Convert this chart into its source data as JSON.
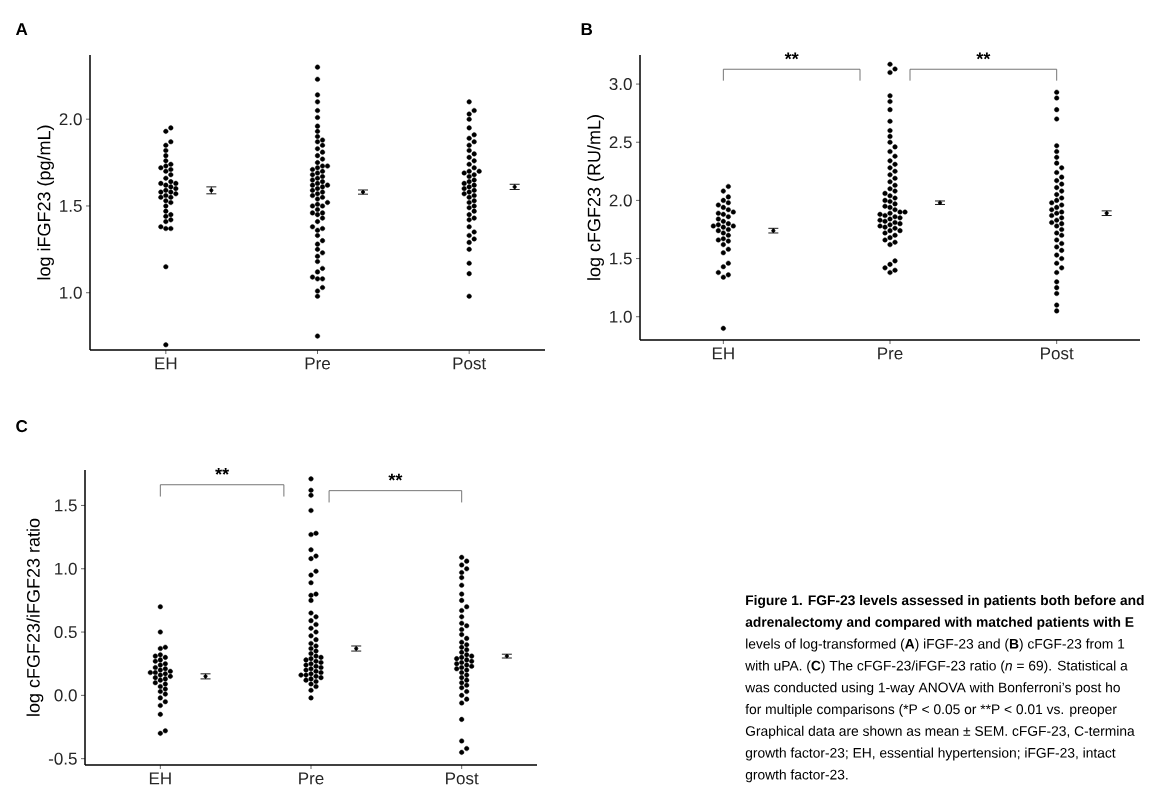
{
  "chart_data": [
    {
      "type": "scatter",
      "title": "A",
      "ylabel": "log iFGF23 (pg/mL)",
      "categories": [
        "EH",
        "Pre",
        "Post"
      ],
      "ylim": [
        0.67,
        2.37
      ],
      "yticks": [
        {
          "value": 1.0,
          "label": "1.0"
        },
        1.5,
        {
          "value": 2.0,
          "label": "2.0"
        }
      ],
      "series": [
        {
          "color": "#000000",
          "marker": "circle",
          "x": [
            "EH",
            "EH",
            "EH",
            "EH",
            "EH",
            "EH",
            "EH",
            "EH",
            "EH",
            "EH",
            "EH",
            "EH",
            "EH",
            "EH",
            "EH",
            "EH",
            "EH",
            "EH",
            "EH",
            "EH",
            "EH",
            "EH",
            "EH",
            "EH",
            "EH",
            "EH",
            "EH",
            "EH",
            "EH",
            "EH",
            "EH",
            "EH",
            "EH",
            "EH",
            "EH",
            "EH",
            "EH",
            "EH",
            "EH",
            "EH",
            "Pre",
            "Pre",
            "Pre",
            "Pre",
            "Pre",
            "Pre",
            "Pre",
            "Pre",
            "Pre",
            "Pre",
            "Pre",
            "Pre",
            "Pre",
            "Pre",
            "Pre",
            "Pre",
            "Pre",
            "Pre",
            "Pre",
            "Pre",
            "Pre",
            "Pre",
            "Pre",
            "Pre",
            "Pre",
            "Pre",
            "Pre",
            "Pre",
            "Pre",
            "Pre",
            "Pre",
            "Pre",
            "Pre",
            "Pre",
            "Pre",
            "Pre",
            "Pre",
            "Pre",
            "Pre",
            "Pre",
            "Pre",
            "Pre",
            "Pre",
            "Pre",
            "Pre",
            "Pre",
            "Pre",
            "Pre",
            "Pre",
            "Pre",
            "Pre",
            "Pre",
            "Pre",
            "Pre",
            "Pre",
            "Pre",
            "Pre",
            "Pre",
            "Pre",
            "Pre",
            "Pre",
            "Pre",
            "Pre",
            "Pre",
            "Pre",
            "Pre",
            "Pre",
            "Pre",
            "Post",
            "Post",
            "Post",
            "Post",
            "Post",
            "Post",
            "Post",
            "Post",
            "Post",
            "Post",
            "Post",
            "Post",
            "Post",
            "Post",
            "Post",
            "Post",
            "Post",
            "Post",
            "Post",
            "Post",
            "Post",
            "Post",
            "Post",
            "Post",
            "Post",
            "Post",
            "Post",
            "Post",
            "Post",
            "Post",
            "Post",
            "Post",
            "Post",
            "Post",
            "Post",
            "Post",
            "Post",
            "Post",
            "Post",
            "Post",
            "Post",
            "Post",
            "Post",
            "Post",
            "Post",
            "Post",
            "Post",
            "Post"
          ],
          "values": [
            0.7,
            1.15,
            1.37,
            1.37,
            1.38,
            1.41,
            1.42,
            1.44,
            1.45,
            1.47,
            1.5,
            1.52,
            1.53,
            1.55,
            1.55,
            1.56,
            1.57,
            1.58,
            1.58,
            1.59,
            1.6,
            1.61,
            1.62,
            1.63,
            1.63,
            1.64,
            1.66,
            1.68,
            1.7,
            1.71,
            1.72,
            1.73,
            1.74,
            1.76,
            1.79,
            1.82,
            1.85,
            1.87,
            1.93,
            1.95,
            0.75,
            0.98,
            1.01,
            1.03,
            1.08,
            1.08,
            1.09,
            1.12,
            1.14,
            1.18,
            1.21,
            1.23,
            1.25,
            1.28,
            1.3,
            1.33,
            1.36,
            1.37,
            1.38,
            1.41,
            1.43,
            1.45,
            1.46,
            1.46,
            1.48,
            1.5,
            1.5,
            1.51,
            1.52,
            1.54,
            1.55,
            1.56,
            1.57,
            1.58,
            1.59,
            1.6,
            1.61,
            1.62,
            1.62,
            1.63,
            1.64,
            1.65,
            1.66,
            1.67,
            1.68,
            1.69,
            1.7,
            1.71,
            1.72,
            1.73,
            1.73,
            1.75,
            1.77,
            1.79,
            1.81,
            1.83,
            1.85,
            1.87,
            1.88,
            1.9,
            1.93,
            1.96,
            2.01,
            2.05,
            2.1,
            2.14,
            2.23,
            2.3,
            0.98,
            1.11,
            1.17,
            1.25,
            1.29,
            1.31,
            1.33,
            1.35,
            1.38,
            1.42,
            1.43,
            1.45,
            1.47,
            1.49,
            1.5,
            1.52,
            1.53,
            1.55,
            1.56,
            1.57,
            1.58,
            1.59,
            1.6,
            1.61,
            1.62,
            1.63,
            1.64,
            1.65,
            1.67,
            1.68,
            1.69,
            1.7,
            1.7,
            1.72,
            1.74,
            1.76,
            1.78,
            1.8,
            1.82,
            1.85,
            1.87,
            1.89,
            1.91,
            1.95,
            2.0,
            2.03,
            2.05,
            2.1
          ]
        },
        {
          "color": "#000000",
          "marker": "circle",
          "x": [
            "EH",
            "Pre",
            "Post"
          ],
          "values": [
            1.59,
            1.58,
            1.61
          ],
          "errors": [
            0.02,
            0.012,
            0.015
          ]
        }
      ]
    },
    {
      "type": "scatter",
      "title": "B",
      "ylabel": "log cFGF23 (RU/mL)",
      "categories": [
        "EH",
        "Pre",
        "Post"
      ],
      "ylim": [
        0.8,
        3.25
      ],
      "yticks": [
        {
          "value": 1.0,
          "label": "1.0"
        },
        1.5,
        {
          "value": 2.0,
          "label": "2.0"
        },
        2.5,
        {
          "value": 3.0,
          "label": "3.0"
        }
      ],
      "annotations": [
        "**",
        "**"
      ],
      "series": [
        {
          "color": "#000000",
          "marker": "circle",
          "x": [
            "EH",
            "EH",
            "EH",
            "EH",
            "EH",
            "EH",
            "EH",
            "EH",
            "EH",
            "EH",
            "EH",
            "EH",
            "EH",
            "EH",
            "EH",
            "EH",
            "EH",
            "EH",
            "EH",
            "EH",
            "EH",
            "EH",
            "EH",
            "EH",
            "EH",
            "EH",
            "EH",
            "EH",
            "EH",
            "EH",
            "EH",
            "EH",
            "EH",
            "EH",
            "EH",
            "Pre",
            "Pre",
            "Pre",
            "Pre",
            "Pre",
            "Pre",
            "Pre",
            "Pre",
            "Pre",
            "Pre",
            "Pre",
            "Pre",
            "Pre",
            "Pre",
            "Pre",
            "Pre",
            "Pre",
            "Pre",
            "Pre",
            "Pre",
            "Pre",
            "Pre",
            "Pre",
            "Pre",
            "Pre",
            "Pre",
            "Pre",
            "Pre",
            "Pre",
            "Pre",
            "Pre",
            "Pre",
            "Pre",
            "Pre",
            "Pre",
            "Pre",
            "Pre",
            "Pre",
            "Pre",
            "Pre",
            "Pre",
            "Pre",
            "Pre",
            "Pre",
            "Pre",
            "Pre",
            "Pre",
            "Pre",
            "Pre",
            "Pre",
            "Pre",
            "Pre",
            "Pre",
            "Pre",
            "Pre",
            "Pre",
            "Pre",
            "Pre",
            "Pre",
            "Pre",
            "Pre",
            "Post",
            "Post",
            "Post",
            "Post",
            "Post",
            "Post",
            "Post",
            "Post",
            "Post",
            "Post",
            "Post",
            "Post",
            "Post",
            "Post",
            "Post",
            "Post",
            "Post",
            "Post",
            "Post",
            "Post",
            "Post",
            "Post",
            "Post",
            "Post",
            "Post",
            "Post",
            "Post",
            "Post",
            "Post",
            "Post",
            "Post",
            "Post",
            "Post",
            "Post",
            "Post",
            "Post",
            "Post",
            "Post",
            "Post",
            "Post",
            "Post",
            "Post",
            "Post",
            "Post",
            "Post",
            "Post",
            "Post"
          ],
          "values": [
            0.9,
            1.34,
            1.36,
            1.38,
            1.43,
            1.46,
            1.55,
            1.58,
            1.62,
            1.65,
            1.66,
            1.67,
            1.7,
            1.72,
            1.74,
            1.75,
            1.77,
            1.78,
            1.78,
            1.79,
            1.8,
            1.82,
            1.84,
            1.86,
            1.88,
            1.89,
            1.9,
            1.92,
            1.94,
            1.96,
            1.98,
            2.0,
            2.03,
            2.08,
            2.12,
            1.38,
            1.4,
            1.42,
            1.45,
            1.48,
            1.62,
            1.64,
            1.66,
            1.68,
            1.7,
            1.72,
            1.74,
            1.74,
            1.76,
            1.77,
            1.78,
            1.79,
            1.8,
            1.81,
            1.82,
            1.83,
            1.84,
            1.85,
            1.86,
            1.87,
            1.88,
            1.89,
            1.9,
            1.9,
            1.92,
            1.94,
            1.95,
            1.97,
            1.99,
            2.0,
            2.02,
            2.04,
            2.06,
            2.08,
            2.1,
            2.13,
            2.16,
            2.19,
            2.22,
            2.25,
            2.28,
            2.31,
            2.34,
            2.38,
            2.42,
            2.46,
            2.5,
            2.55,
            2.6,
            2.68,
            2.78,
            2.85,
            2.9,
            3.1,
            3.13,
            3.17,
            1.05,
            1.1,
            1.2,
            1.25,
            1.3,
            1.38,
            1.42,
            1.46,
            1.5,
            1.53,
            1.57,
            1.6,
            1.63,
            1.66,
            1.7,
            1.72,
            1.75,
            1.78,
            1.8,
            1.81,
            1.83,
            1.85,
            1.87,
            1.89,
            1.9,
            1.92,
            1.94,
            1.96,
            1.98,
            2.0,
            2.02,
            2.05,
            2.08,
            2.11,
            2.14,
            2.17,
            2.2,
            2.24,
            2.28,
            2.32,
            2.37,
            2.42,
            2.47,
            2.7,
            2.78,
            2.88,
            2.93
          ]
        },
        {
          "color": "#000000",
          "marker": "circle",
          "x": [
            "EH",
            "Pre",
            "Post"
          ],
          "values": [
            1.74,
            1.98,
            1.89
          ],
          "errors": [
            0.02,
            0.015,
            0.02
          ]
        }
      ]
    },
    {
      "type": "scatter",
      "title": "C",
      "ylabel": "log cFGF23/iFGF23 ratio",
      "categories": [
        "EH",
        "Pre",
        "Post"
      ],
      "ylim": [
        -0.55,
        1.78
      ],
      "yticks": [
        -0.5,
        {
          "value": 0.0,
          "label": "0.0"
        },
        0.5,
        {
          "value": 1.0,
          "label": "1.0"
        },
        1.5
      ],
      "annotations": [
        "**",
        "**"
      ],
      "series": [
        {
          "color": "#000000",
          "marker": "circle",
          "x": [
            "EH",
            "EH",
            "EH",
            "EH",
            "EH",
            "EH",
            "EH",
            "EH",
            "EH",
            "EH",
            "EH",
            "EH",
            "EH",
            "EH",
            "EH",
            "EH",
            "EH",
            "EH",
            "EH",
            "EH",
            "EH",
            "EH",
            "EH",
            "EH",
            "EH",
            "EH",
            "EH",
            "EH",
            "EH",
            "EH",
            "EH",
            "EH",
            "EH",
            "EH",
            "EH",
            "Pre",
            "Pre",
            "Pre",
            "Pre",
            "Pre",
            "Pre",
            "Pre",
            "Pre",
            "Pre",
            "Pre",
            "Pre",
            "Pre",
            "Pre",
            "Pre",
            "Pre",
            "Pre",
            "Pre",
            "Pre",
            "Pre",
            "Pre",
            "Pre",
            "Pre",
            "Pre",
            "Pre",
            "Pre",
            "Pre",
            "Pre",
            "Pre",
            "Pre",
            "Pre",
            "Pre",
            "Pre",
            "Pre",
            "Pre",
            "Pre",
            "Pre",
            "Pre",
            "Pre",
            "Pre",
            "Pre",
            "Pre",
            "Pre",
            "Pre",
            "Pre",
            "Pre",
            "Pre",
            "Pre",
            "Pre",
            "Pre",
            "Pre",
            "Pre",
            "Pre",
            "Pre",
            "Pre",
            "Post",
            "Post",
            "Post",
            "Post",
            "Post",
            "Post",
            "Post",
            "Post",
            "Post",
            "Post",
            "Post",
            "Post",
            "Post",
            "Post",
            "Post",
            "Post",
            "Post",
            "Post",
            "Post",
            "Post",
            "Post",
            "Post",
            "Post",
            "Post",
            "Post",
            "Post",
            "Post",
            "Post",
            "Post",
            "Post",
            "Post",
            "Post",
            "Post",
            "Post",
            "Post",
            "Post",
            "Post",
            "Post",
            "Post",
            "Post",
            "Post",
            "Post",
            "Post",
            "Post",
            "Post",
            "Post",
            "Post",
            "Post",
            "Post",
            "Post"
          ],
          "values": [
            -0.3,
            -0.28,
            -0.15,
            -0.08,
            -0.05,
            -0.02,
            0.01,
            0.03,
            0.05,
            0.07,
            0.09,
            0.1,
            0.12,
            0.13,
            0.14,
            0.15,
            0.16,
            0.17,
            0.18,
            0.18,
            0.19,
            0.2,
            0.21,
            0.22,
            0.24,
            0.25,
            0.27,
            0.28,
            0.3,
            0.31,
            0.32,
            0.37,
            0.38,
            0.5,
            0.7,
            -0.02,
            0.04,
            0.07,
            0.09,
            0.11,
            0.12,
            0.13,
            0.14,
            0.15,
            0.16,
            0.16,
            0.17,
            0.18,
            0.19,
            0.2,
            0.21,
            0.22,
            0.23,
            0.24,
            0.25,
            0.26,
            0.27,
            0.28,
            0.29,
            0.3,
            0.31,
            0.33,
            0.35,
            0.37,
            0.39,
            0.41,
            0.44,
            0.47,
            0.5,
            0.53,
            0.56,
            0.59,
            0.62,
            0.65,
            0.75,
            0.79,
            0.8,
            0.89,
            0.95,
            0.98,
            1.08,
            1.1,
            1.15,
            1.27,
            1.28,
            1.46,
            1.58,
            1.62,
            1.71,
            -0.45,
            -0.42,
            -0.36,
            -0.19,
            -0.06,
            -0.03,
            0.0,
            0.03,
            0.06,
            0.08,
            0.1,
            0.12,
            0.14,
            0.16,
            0.18,
            0.2,
            0.21,
            0.22,
            0.23,
            0.24,
            0.25,
            0.26,
            0.27,
            0.28,
            0.29,
            0.3,
            0.31,
            0.32,
            0.34,
            0.36,
            0.38,
            0.4,
            0.42,
            0.45,
            0.48,
            0.52,
            0.55,
            0.57,
            0.62,
            0.67,
            0.7,
            0.75,
            0.8,
            0.87,
            0.93,
            0.97,
            1.0,
            1.03,
            1.06,
            1.09
          ]
        },
        {
          "color": "#000000",
          "marker": "circle",
          "x": [
            "EH",
            "Pre",
            "Post"
          ],
          "values": [
            0.15,
            0.37,
            0.31
          ],
          "errors": [
            0.02,
            0.02,
            0.015
          ]
        }
      ]
    },
    {
      "type": "other",
      "annotations": [
        "**Figure 1. FGF-23 levels assessed in patients both before and**",
        "**adrenalectomy and compared with matched patients with E**",
        "levels of log-transformed (**A**) iFGF-23 and (**B**) cFGF-23 from 1",
        "with uPA. (**C**) The cFGF-23/iFGF-23 ratio (*n* = 69). Statistical a",
        "was conducted using 1-way ANOVA with Bonferroni’s post ho",
        "for multiple comparisons (*P < 0.05 or **P < 0.01 vs. preoper",
        "Graphical data are shown as mean ± SEM. cFGF-23, C-termina",
        "growth factor-23; EH, essential hypertension; iFGF-23, intact",
        "growth factor-23."
      ]
    }
  ]
}
